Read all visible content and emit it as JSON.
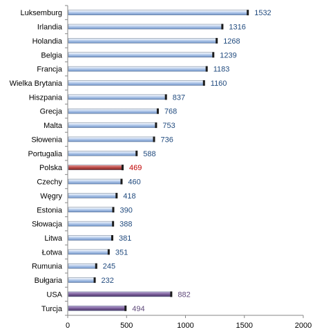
{
  "chart_data": {
    "type": "bar",
    "orientation": "horizontal",
    "categories": [
      "Luksemburg",
      "Irlandia",
      "Holandia",
      "Belgia",
      "Francja",
      "Wielka Brytania",
      "Hiszpania",
      "Grecja",
      "Malta",
      "Słowenia",
      "Portugalia",
      "Polska",
      "Czechy",
      "Węgry",
      "Estonia",
      "Słowacja",
      "Litwa",
      "Łotwa",
      "Rumunia",
      "Bułgaria",
      "USA",
      "Turcja"
    ],
    "values": [
      1532,
      1316,
      1268,
      1239,
      1183,
      1160,
      837,
      768,
      753,
      736,
      588,
      469,
      460,
      418,
      390,
      388,
      381,
      351,
      245,
      232,
      882,
      494
    ],
    "value_labels": [
      "1532",
      "1316",
      "1268",
      "1239",
      "1183",
      "1160",
      "837",
      "768",
      "753",
      "736",
      "588",
      "469",
      "460",
      "418",
      "390",
      "388",
      "381",
      "351",
      "245",
      "232",
      "882",
      "494"
    ],
    "bar_groups": [
      "eu",
      "eu",
      "eu",
      "eu",
      "eu",
      "eu",
      "eu",
      "eu",
      "eu",
      "eu",
      "eu",
      "highlight",
      "eu",
      "eu",
      "eu",
      "eu",
      "eu",
      "eu",
      "eu",
      "eu",
      "non-eu",
      "non-eu"
    ],
    "xlim": [
      0,
      2000
    ],
    "x_ticks": [
      0,
      500,
      1000,
      1500,
      2000
    ],
    "x_tick_labels": [
      "0",
      "500",
      "1000",
      "1500",
      "2000"
    ],
    "grid": false,
    "legend": "none",
    "title": "",
    "xlabel": "",
    "ylabel": "",
    "colors": {
      "eu": "#9cb9e3",
      "highlight": "#c0504d",
      "non-eu": "#8064a2",
      "eu_label": "#1f497d",
      "highlight_label": "#c00000",
      "non-eu_label": "#5f497a"
    }
  }
}
